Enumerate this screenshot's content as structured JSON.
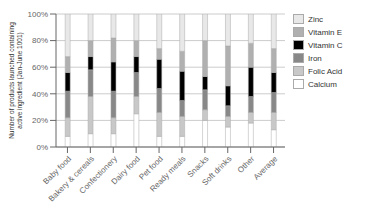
{
  "chart_data": {
    "type": "bar",
    "stacked": true,
    "categories": [
      "Baby food",
      "Bakery & cereals",
      "Confectionery",
      "Dairy food",
      "Pet food",
      "Ready meals",
      "Snacks",
      "Soft drinks",
      "Other",
      "Average"
    ],
    "series": [
      {
        "name": "Calcium",
        "color": "#ffffff",
        "values": [
          8,
          10,
          10,
          25,
          8,
          8,
          20,
          15,
          18,
          13
        ]
      },
      {
        "name": "Folic Acid",
        "color": "#c8c8c8",
        "values": [
          14,
          28,
          12,
          13,
          18,
          15,
          8,
          8,
          8,
          13
        ]
      },
      {
        "name": "Iron",
        "color": "#888888",
        "values": [
          20,
          20,
          20,
          18,
          18,
          12,
          15,
          8,
          12,
          15
        ]
      },
      {
        "name": "Vitamin C",
        "color": "#000000",
        "values": [
          14,
          10,
          22,
          12,
          22,
          22,
          10,
          15,
          22,
          15
        ]
      },
      {
        "name": "Vitamin E",
        "color": "#b0b0b0",
        "values": [
          12,
          12,
          18,
          12,
          8,
          15,
          27,
          30,
          18,
          18
        ]
      },
      {
        "name": "Zinc",
        "color": "#e8e8e8",
        "values": [
          32,
          20,
          18,
          20,
          26,
          28,
          20,
          24,
          22,
          26
        ]
      }
    ],
    "ylabel": "Number of products launched containing\nactive ingredient (Jan-June 1001)",
    "ylim": [
      0,
      100
    ],
    "yticks": [
      {
        "value": 0,
        "label": "0%"
      },
      {
        "value": 20,
        "label": "20%"
      },
      {
        "value": 40,
        "label": "40%"
      },
      {
        "value": 60,
        "label": "60%"
      },
      {
        "value": 80,
        "label": "80%"
      },
      {
        "value": 100,
        "label": "100%"
      }
    ],
    "grid": true,
    "legend": "upper right"
  }
}
